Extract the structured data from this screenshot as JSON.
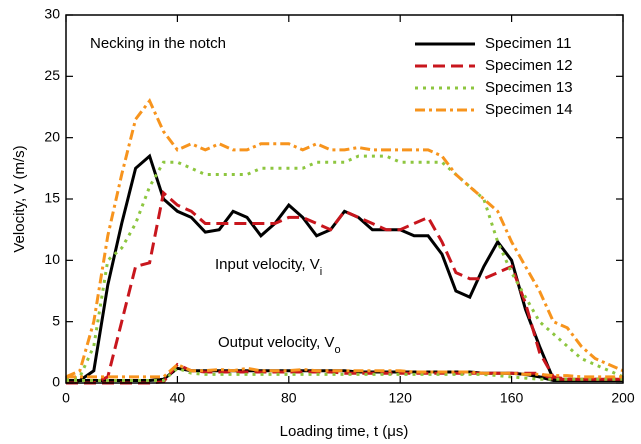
{
  "chart_data": {
    "type": "line",
    "xlabel": "Loading time, t (μs)",
    "ylabel": "Velocity, V (m/s)",
    "xlim": [
      0,
      200
    ],
    "xticks": [
      0,
      40,
      80,
      120,
      160,
      200
    ],
    "ylim": [
      0,
      30
    ],
    "yticks": [
      0,
      5,
      10,
      15,
      20,
      25,
      30
    ],
    "legend": "upper right",
    "annotations": [
      {
        "text": "Necking in the notch"
      },
      {
        "text": "Input velocity, V",
        "sub": "i"
      },
      {
        "text": "Output velocity, V",
        "sub": "o"
      }
    ],
    "x": [
      0,
      5,
      10,
      15,
      20,
      25,
      30,
      35,
      40,
      45,
      50,
      55,
      60,
      65,
      70,
      75,
      80,
      85,
      90,
      95,
      100,
      105,
      110,
      115,
      120,
      125,
      130,
      135,
      140,
      145,
      150,
      155,
      160,
      165,
      170,
      175,
      180,
      185,
      190,
      195,
      200
    ],
    "series": [
      {
        "name": "Specimen 11",
        "color": "#000000",
        "dash": "solid",
        "values": [
          0,
          0.2,
          1,
          8,
          13,
          17.5,
          18.5,
          15,
          14,
          13.5,
          12.3,
          12.5,
          14,
          13.5,
          12,
          13,
          14.5,
          13.5,
          12,
          12.5,
          14,
          13.5,
          12.5,
          12.5,
          12.5,
          12,
          12,
          10.5,
          7.5,
          7,
          9.5,
          11.5,
          10,
          6,
          3,
          0.3,
          0.2,
          0.2,
          0.2,
          0.2,
          0.2
        ],
        "output_values": [
          0.2,
          0.2,
          0.2,
          0.2,
          0.2,
          0.2,
          0.2,
          0.3,
          1.2,
          1,
          1,
          1,
          1,
          1,
          1,
          1,
          1,
          1,
          1,
          1,
          1,
          0.9,
          0.9,
          0.9,
          0.9,
          0.9,
          0.9,
          0.9,
          0.9,
          0.9,
          0.8,
          0.8,
          0.8,
          0.7,
          0.5,
          0.2,
          0.2,
          0.2,
          0.2,
          0.2,
          0.2
        ]
      },
      {
        "name": "Specimen 12",
        "color": "#c8161d",
        "dash": "dashed",
        "values": [
          0,
          0,
          0,
          0.5,
          5,
          9.5,
          9.8,
          15.5,
          14.5,
          14,
          13,
          13,
          13,
          13,
          13,
          13,
          13.5,
          13.5,
          13,
          12.5,
          14,
          13.5,
          13,
          12.5,
          12.5,
          13,
          13.5,
          11.5,
          9,
          8.5,
          8.5,
          9,
          9.5,
          6.5,
          2.5,
          0.5,
          0.3,
          0.3,
          0.3,
          0.3,
          0.3
        ],
        "output_values": [
          0,
          0,
          0,
          0,
          0,
          0,
          0,
          0.1,
          1.5,
          1,
          0.9,
          0.9,
          0.9,
          0.9,
          0.9,
          0.9,
          0.9,
          0.9,
          0.9,
          0.9,
          0.8,
          0.8,
          0.8,
          0.8,
          0.8,
          0.8,
          0.8,
          0.8,
          0.8,
          0.8,
          0.8,
          0.8,
          0.8,
          0.8,
          0.8,
          0.3,
          0.3,
          0.3,
          0.3,
          0.3,
          0.3
        ]
      },
      {
        "name": "Specimen 13",
        "color": "#8dc63f",
        "dash": "dotted",
        "values": [
          0.3,
          0.5,
          3,
          10,
          11,
          13,
          16,
          18,
          18,
          17.5,
          17,
          17,
          17,
          17,
          17.5,
          17.5,
          17.5,
          17.5,
          18,
          18,
          18,
          18.5,
          18.5,
          18.5,
          18,
          18,
          18,
          18,
          17,
          16,
          15,
          11.5,
          9,
          7,
          5,
          4,
          3,
          2,
          1.5,
          1,
          0.5
        ],
        "output_values": [
          0.2,
          0.2,
          0.2,
          0.2,
          0.2,
          0.2,
          0.2,
          0.2,
          1.2,
          0.8,
          0.7,
          0.7,
          0.7,
          0.7,
          0.7,
          0.7,
          0.7,
          0.7,
          0.7,
          0.7,
          0.7,
          0.7,
          0.7,
          0.7,
          0.7,
          0.7,
          0.7,
          0.7,
          0.7,
          0.7,
          0.7,
          0.6,
          0.5,
          0.4,
          0.3,
          0.3,
          0.3,
          0.3,
          0.3,
          0.3,
          0.3
        ]
      },
      {
        "name": "Specimen 14",
        "color": "#f7941d",
        "dash": "dashdot",
        "values": [
          0.5,
          1,
          5,
          12,
          17,
          21.5,
          23,
          20.5,
          19,
          19.5,
          19,
          19.5,
          19,
          19,
          19.5,
          19.5,
          19.5,
          19,
          19.5,
          19,
          19,
          19.2,
          19,
          19,
          19,
          19,
          19,
          18.5,
          17,
          16,
          15,
          14,
          11.5,
          9.5,
          7.5,
          5,
          4.5,
          3,
          2,
          1.5,
          1
        ],
        "output_values": [
          0.5,
          0.5,
          0.5,
          0.5,
          0.5,
          0.5,
          0.5,
          0.5,
          1.5,
          1,
          1,
          1.1,
          1,
          1.2,
          1,
          1,
          1,
          1.1,
          1,
          1,
          1,
          1,
          1,
          1,
          1,
          0.9,
          0.9,
          0.9,
          0.9,
          0.9,
          0.8,
          0.8,
          0.8,
          0.7,
          0.7,
          0.6,
          0.6,
          0.5,
          0.5,
          0.5,
          0.5
        ]
      }
    ]
  }
}
